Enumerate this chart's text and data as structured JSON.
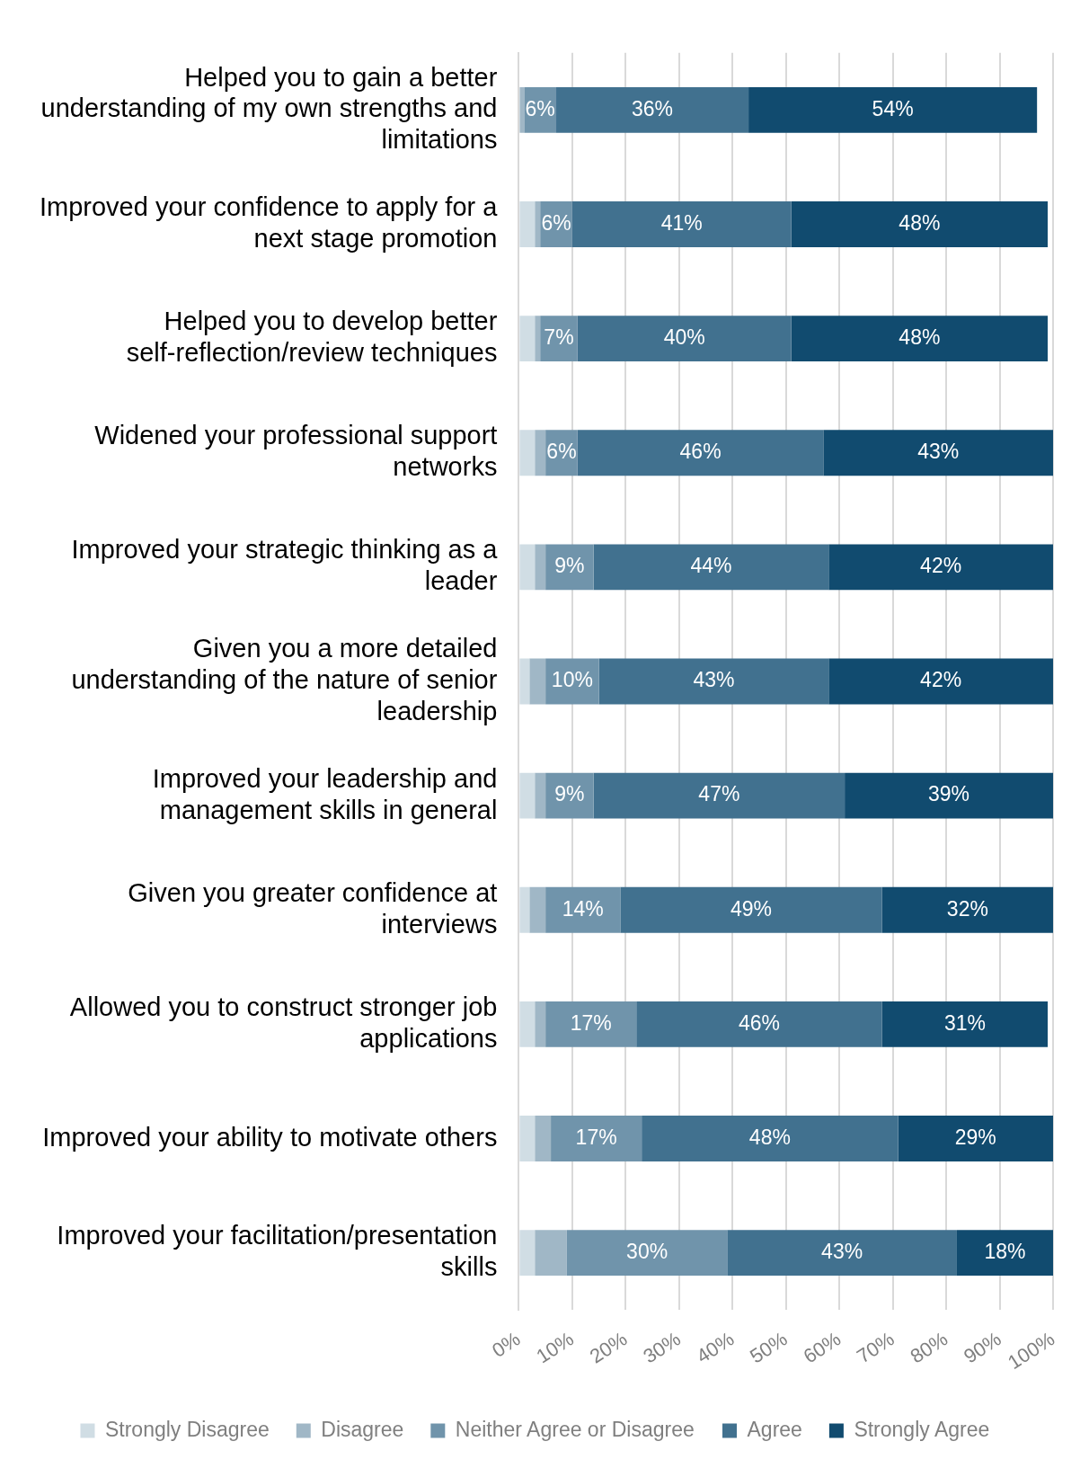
{
  "chart_data": {
    "type": "bar",
    "orientation": "horizontal",
    "stacked": true,
    "categories": [
      "Helped you to gain a better understanding of my own strengths and limitations",
      "Improved your confidence to apply for a next stage promotion",
      "Helped you to develop better self-reflection/review techniques",
      "Widened your professional support networks",
      "Improved your strategic thinking as a leader",
      "Given you a more detailed understanding of the nature of senior leadership",
      "Improved your leadership and management skills in general",
      "Given you greater confidence at interviews",
      "Allowed you to construct stronger job applications",
      "Improved your ability to motivate others",
      "Improved your facilitation/presentation skills"
    ],
    "series": [
      {
        "name": "Strongly Disagree",
        "color": "#d0dde4",
        "values": [
          0,
          3,
          3,
          3,
          3,
          2,
          3,
          2,
          3,
          3,
          3
        ]
      },
      {
        "name": "Disagree",
        "color": "#a0b7c6",
        "values": [
          1,
          1,
          1,
          2,
          2,
          3,
          2,
          3,
          2,
          3,
          6
        ]
      },
      {
        "name": "Neither Agree or Disagree",
        "color": "#7094ab",
        "values": [
          6,
          6,
          7,
          6,
          9,
          10,
          9,
          14,
          17,
          17,
          30
        ],
        "value_labels": [
          "6%",
          "6%",
          "7%",
          "6%",
          "9%",
          "10%",
          "9%",
          "14%",
          "17%",
          "17%",
          "30%"
        ]
      },
      {
        "name": "Agree",
        "color": "#41718f",
        "values": [
          36,
          41,
          40,
          46,
          44,
          43,
          47,
          49,
          46,
          48,
          43
        ],
        "value_labels": [
          "36%",
          "41%",
          "40%",
          "46%",
          "44%",
          "43%",
          "47%",
          "49%",
          "46%",
          "48%",
          "43%"
        ]
      },
      {
        "name": "Strongly Agree",
        "color": "#114b6f",
        "values": [
          54,
          48,
          48,
          43,
          42,
          42,
          39,
          32,
          31,
          29,
          18
        ],
        "value_labels": [
          "54%",
          "48%",
          "48%",
          "43%",
          "42%",
          "42%",
          "39%",
          "32%",
          "31%",
          "29%",
          "18%"
        ]
      }
    ],
    "xlim": [
      0,
      100
    ],
    "xticks": [
      {
        "value": 0,
        "label": "0%"
      },
      {
        "value": 10,
        "label": "10%"
      },
      {
        "value": 20,
        "label": "20%"
      },
      {
        "value": 30,
        "label": "30%"
      },
      {
        "value": 40,
        "label": "40%"
      },
      {
        "value": 50,
        "label": "50%"
      },
      {
        "value": 60,
        "label": "60%"
      },
      {
        "value": 70,
        "label": "70%"
      },
      {
        "value": 80,
        "label": "80%"
      },
      {
        "value": 90,
        "label": "90%"
      },
      {
        "value": 100,
        "label": "100%"
      }
    ],
    "grid": "x",
    "legend": "bottom"
  }
}
